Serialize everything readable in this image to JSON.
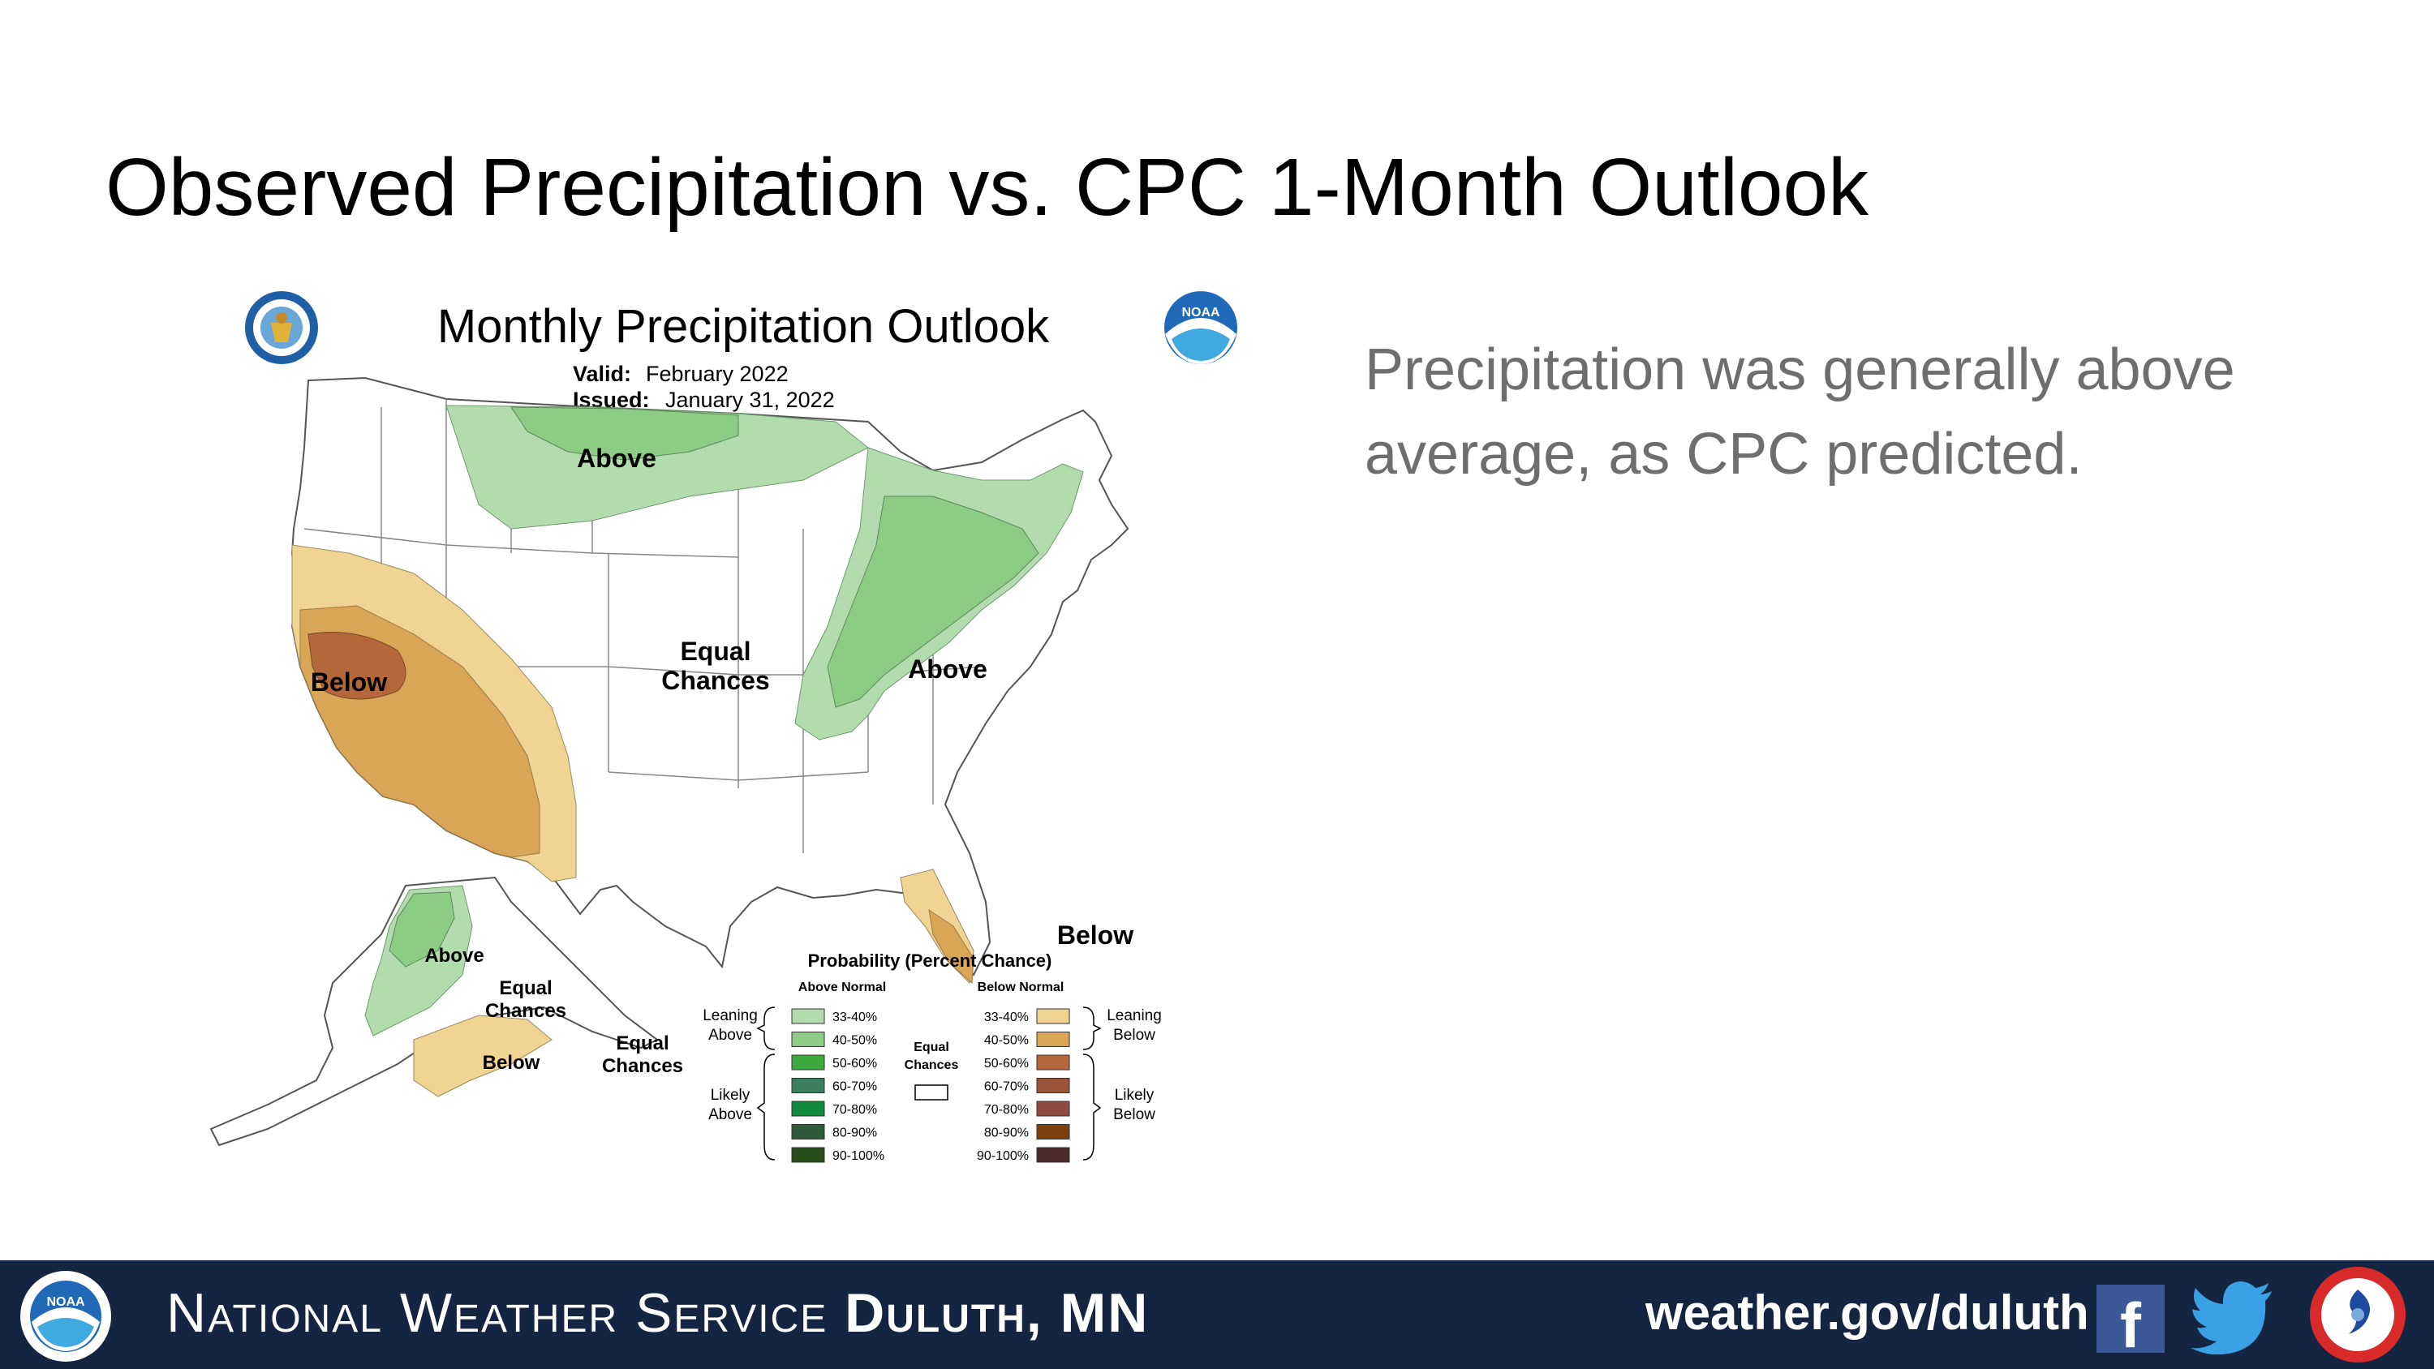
{
  "slide": {
    "title": "Observed Precipitation vs. CPC 1-Month Outlook",
    "body_text": "Precipitation was generally above average, as CPC predicted."
  },
  "map": {
    "title": "Monthly Precipitation Outlook",
    "valid_label": "Valid:",
    "valid_value": "February 2022",
    "issued_label": "Issued:",
    "issued_value": "January 31, 2022",
    "region_labels": {
      "above_north": "Above",
      "above_east": "Above",
      "below_west": "Below",
      "below_florida": "Below",
      "equal_chances_conus_1": "Equal",
      "equal_chances_conus_2": "Chances",
      "ak_above": "Above",
      "ak_equal_1": "Equal",
      "ak_equal_2": "Chances",
      "ak_below": "Below",
      "ak_equal2_1": "Equal",
      "ak_equal2_2": "Chances"
    },
    "legend": {
      "title": "Probability (Percent Chance)",
      "above_header": "Above Normal",
      "below_header": "Below Normal",
      "leaning_above_1": "Leaning",
      "leaning_above_2": "Above",
      "likely_above_1": "Likely",
      "likely_above_2": "Above",
      "leaning_below_1": "Leaning",
      "leaning_below_2": "Below",
      "likely_below_1": "Likely",
      "likely_below_2": "Below",
      "equal_1": "Equal",
      "equal_2": "Chances",
      "above_items": [
        {
          "label": "33-40%",
          "color": "#b3dcae"
        },
        {
          "label": "40-50%",
          "color": "#8ccc84"
        },
        {
          "label": "50-60%",
          "color": "#3da93c"
        },
        {
          "label": "60-70%",
          "color": "#3c7e60"
        },
        {
          "label": "70-80%",
          "color": "#0e8a3a"
        },
        {
          "label": "80-90%",
          "color": "#2c5a3a"
        },
        {
          "label": "90-100%",
          "color": "#274d18"
        }
      ],
      "below_items": [
        {
          "label": "33-40%",
          "color": "#f1d394"
        },
        {
          "label": "40-50%",
          "color": "#d9a556"
        },
        {
          "label": "50-60%",
          "color": "#b3673a"
        },
        {
          "label": "60-70%",
          "color": "#9a5438"
        },
        {
          "label": "70-80%",
          "color": "#8e4a40"
        },
        {
          "label": "80-90%",
          "color": "#7b3f10"
        },
        {
          "label": "90-100%",
          "color": "#4e2a28"
        }
      ]
    }
  },
  "footer": {
    "org_prefix": "National Weather Service ",
    "org_office": "Duluth, MN",
    "url": "weather.gov/duluth",
    "facebook_glyph": "f"
  },
  "icons": {
    "doc_seal": "commerce-seal-icon",
    "noaa": "noaa-logo-icon",
    "facebook": "facebook-icon",
    "twitter": "twitter-icon",
    "nws": "nws-logo-icon"
  },
  "colors": {
    "footer_bg": "#132540",
    "above_light": "#b3dcae",
    "above_mid": "#8ccc84",
    "below_light": "#f1d394",
    "below_mid": "#d9a556",
    "below_dark": "#b3673a"
  }
}
